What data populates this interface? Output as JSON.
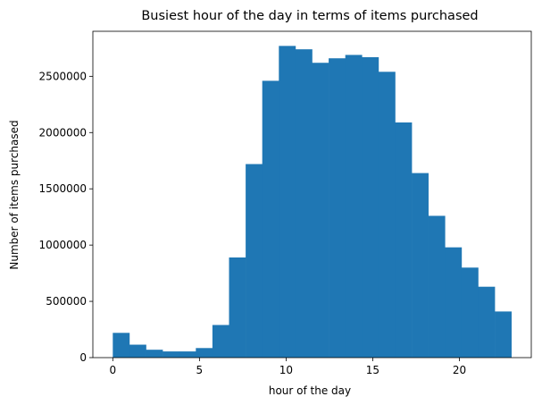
{
  "chart_data": {
    "type": "bar",
    "title": "Busiest hour of the day in terms of items purchased",
    "xlabel": "hour of the day",
    "ylabel": "Number of items purchased",
    "bin_edges": [
      0,
      0.958,
      1.917,
      2.875,
      3.833,
      4.792,
      5.75,
      6.708,
      7.667,
      8.625,
      9.583,
      10.542,
      11.5,
      12.458,
      13.417,
      14.375,
      15.333,
      16.292,
      17.25,
      18.208,
      19.167,
      20.125,
      21.083,
      22.042,
      23
    ],
    "values": [
      220000,
      115000,
      70000,
      55000,
      55000,
      85000,
      290000,
      890000,
      1720000,
      2460000,
      2770000,
      2740000,
      2620000,
      2660000,
      2690000,
      2670000,
      2540000,
      2090000,
      1640000,
      1260000,
      980000,
      800000,
      630000,
      410000
    ],
    "xlim": [
      -1.15,
      24.15
    ],
    "ylim": [
      0,
      2900000
    ],
    "x_ticks": [
      0,
      5,
      10,
      15,
      20
    ],
    "x_tick_labels": [
      "0",
      "5",
      "10",
      "15",
      "20"
    ],
    "y_ticks": [
      0,
      500000,
      1000000,
      1500000,
      2000000,
      2500000
    ],
    "y_tick_labels": [
      "0",
      "500000",
      "1000000",
      "1500000",
      "2000000",
      "2500000"
    ],
    "bar_color": "#1f77b4",
    "grid": false,
    "legend": "none"
  }
}
